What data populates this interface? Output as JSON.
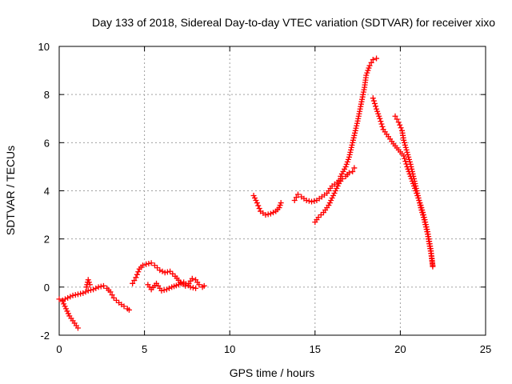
{
  "chart_data": {
    "type": "scatter",
    "title": "Day 133 of 2018, Sidereal Day-to-day VTEC variation (SDTVAR) for receiver xixo",
    "xlabel": "GPS time / hours",
    "ylabel": "SDTVAR / TECUs",
    "xlim": [
      0,
      25
    ],
    "ylim": [
      -2,
      10
    ],
    "xticks": [
      0,
      5,
      10,
      15,
      20,
      25
    ],
    "yticks": [
      -2,
      0,
      2,
      4,
      6,
      8,
      10
    ],
    "grid": true,
    "marker": "plus",
    "color": "#ff0000",
    "series": [
      {
        "segments": [
          [
            [
              0.0,
              -0.5
            ],
            [
              0.2,
              -0.6
            ],
            [
              0.4,
              -0.9
            ],
            [
              0.6,
              -1.2
            ],
            [
              0.8,
              -1.4
            ],
            [
              1.0,
              -1.6
            ],
            [
              1.1,
              -1.7
            ]
          ],
          [
            [
              0.2,
              -0.55
            ],
            [
              0.5,
              -0.45
            ],
            [
              0.8,
              -0.35
            ],
            [
              1.1,
              -0.3
            ],
            [
              1.4,
              -0.25
            ],
            [
              1.7,
              -0.15
            ],
            [
              2.0,
              -0.1
            ],
            [
              2.3,
              0.0
            ],
            [
              2.6,
              0.05
            ],
            [
              2.8,
              -0.05
            ],
            [
              3.0,
              -0.2
            ],
            [
              3.2,
              -0.45
            ],
            [
              3.5,
              -0.65
            ],
            [
              3.8,
              -0.8
            ],
            [
              4.0,
              -0.9
            ],
            [
              4.1,
              -0.95
            ]
          ],
          [
            [
              1.6,
              0.0
            ],
            [
              1.7,
              0.3
            ],
            [
              1.8,
              0.1
            ]
          ],
          [
            [
              4.3,
              0.15
            ],
            [
              4.5,
              0.4
            ],
            [
              4.7,
              0.75
            ],
            [
              4.9,
              0.9
            ],
            [
              5.1,
              0.95
            ],
            [
              5.4,
              1.0
            ],
            [
              5.6,
              0.9
            ],
            [
              5.9,
              0.7
            ],
            [
              6.2,
              0.6
            ],
            [
              6.5,
              0.65
            ],
            [
              6.8,
              0.45
            ],
            [
              7.1,
              0.2
            ],
            [
              7.4,
              0.05
            ],
            [
              7.6,
              0.15
            ],
            [
              7.8,
              0.35
            ],
            [
              8.0,
              0.3
            ],
            [
              8.2,
              0.1
            ],
            [
              8.4,
              0.0
            ],
            [
              8.5,
              0.05
            ]
          ],
          [
            [
              5.2,
              0.1
            ],
            [
              5.4,
              -0.1
            ],
            [
              5.7,
              0.15
            ],
            [
              6.0,
              -0.15
            ],
            [
              6.3,
              -0.1
            ],
            [
              6.6,
              0.0
            ],
            [
              7.0,
              0.1
            ],
            [
              7.3,
              0.2
            ],
            [
              7.7,
              0.0
            ],
            [
              8.0,
              -0.05
            ]
          ],
          [
            [
              11.4,
              3.8
            ],
            [
              11.6,
              3.5
            ],
            [
              11.8,
              3.15
            ],
            [
              12.1,
              3.0
            ],
            [
              12.4,
              3.05
            ],
            [
              12.7,
              3.15
            ],
            [
              12.9,
              3.3
            ],
            [
              13.0,
              3.5
            ]
          ],
          [
            [
              13.8,
              3.6
            ],
            [
              14.0,
              3.85
            ],
            [
              14.2,
              3.75
            ],
            [
              14.5,
              3.6
            ],
            [
              14.8,
              3.55
            ],
            [
              15.1,
              3.6
            ],
            [
              15.4,
              3.75
            ],
            [
              15.7,
              3.9
            ],
            [
              16.0,
              4.2
            ],
            [
              16.3,
              4.35
            ],
            [
              16.5,
              4.5
            ]
          ],
          [
            [
              15.0,
              2.7
            ],
            [
              15.2,
              2.9
            ],
            [
              15.5,
              3.1
            ],
            [
              15.8,
              3.4
            ],
            [
              16.0,
              3.7
            ],
            [
              16.2,
              4.0
            ],
            [
              16.4,
              4.3
            ],
            [
              16.6,
              4.5
            ],
            [
              16.8,
              4.6
            ],
            [
              17.0,
              4.75
            ]
          ],
          [
            [
              16.5,
              4.6
            ],
            [
              16.8,
              5.0
            ],
            [
              17.0,
              5.4
            ],
            [
              17.1,
              5.7
            ],
            [
              17.3,
              6.3
            ],
            [
              17.5,
              6.9
            ],
            [
              17.7,
              7.6
            ],
            [
              17.9,
              8.3
            ],
            [
              18.0,
              8.8
            ],
            [
              18.2,
              9.2
            ],
            [
              18.4,
              9.45
            ],
            [
              18.6,
              9.5
            ]
          ],
          [
            [
              17.2,
              4.8
            ],
            [
              17.3,
              4.95
            ]
          ],
          [
            [
              18.4,
              7.85
            ],
            [
              18.6,
              7.4
            ],
            [
              18.8,
              7.0
            ],
            [
              19.0,
              6.55
            ],
            [
              19.3,
              6.25
            ],
            [
              19.6,
              5.95
            ],
            [
              19.9,
              5.7
            ],
            [
              20.2,
              5.45
            ],
            [
              20.4,
              5.0
            ],
            [
              20.6,
              4.6
            ],
            [
              20.8,
              4.2
            ],
            [
              21.0,
              3.8
            ],
            [
              21.2,
              3.4
            ],
            [
              21.4,
              2.9
            ],
            [
              21.6,
              2.3
            ],
            [
              21.8,
              1.5
            ],
            [
              21.9,
              0.85
            ]
          ],
          [
            [
              19.7,
              7.1
            ],
            [
              19.9,
              6.85
            ],
            [
              20.1,
              6.5
            ],
            [
              20.2,
              6.1
            ],
            [
              20.4,
              5.6
            ],
            [
              20.6,
              5.1
            ],
            [
              20.8,
              4.5
            ],
            [
              21.0,
              3.9
            ],
            [
              21.2,
              3.3
            ],
            [
              21.4,
              2.8
            ],
            [
              21.6,
              2.2
            ],
            [
              21.8,
              1.4
            ],
            [
              21.9,
              0.9
            ]
          ]
        ]
      }
    ]
  }
}
